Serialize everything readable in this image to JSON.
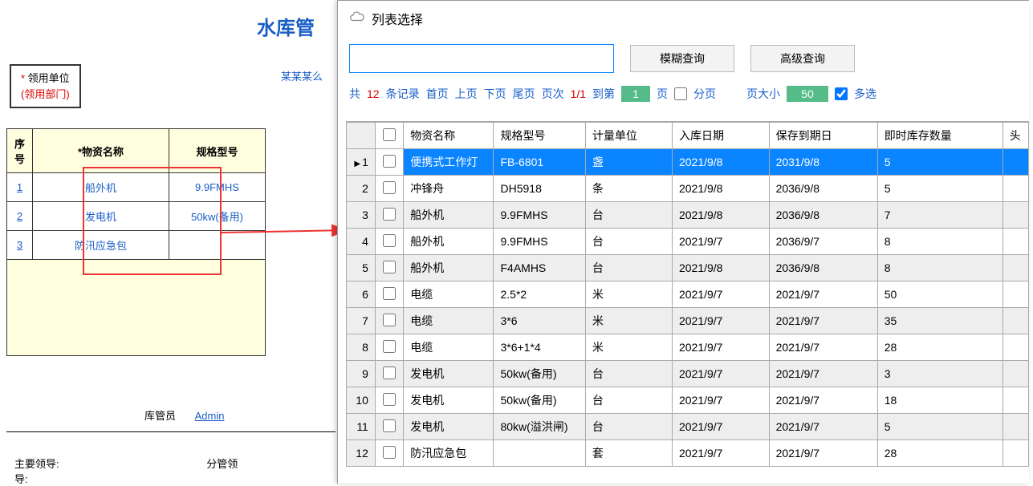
{
  "page_title": "水库管",
  "company_label": "某某某么",
  "receive_box": {
    "line1_star": "*",
    "line1_text": " 领用单位",
    "line2": "(领用部门)"
  },
  "left_table": {
    "headers": {
      "seq": "序号",
      "name": "*物资名称",
      "spec": "规格型号"
    },
    "rows": [
      {
        "seq": "1",
        "name": "船外机",
        "spec": "9.9FMHS"
      },
      {
        "seq": "2",
        "name": "发电机",
        "spec": "50kw(备用)"
      },
      {
        "seq": "3",
        "name": "防汛应急包",
        "spec": ""
      }
    ]
  },
  "footer": {
    "keeper_label": "库管员",
    "keeper_value": "Admin",
    "leader1": "主要领导:",
    "leader2": "分管领导:"
  },
  "popup": {
    "title": "列表选择",
    "search_placeholder": "",
    "btn_fuzzy": "模糊查询",
    "btn_advanced": "高级查询",
    "toolbar": {
      "total_lbl": "共",
      "total_count": "12",
      "records_lbl": "条记录",
      "first": "首页",
      "prev": "上页",
      "next": "下页",
      "last": "尾页",
      "page_lbl": "页次",
      "page_cur": "1/1",
      "goto_lbl": "到第",
      "page_num": "1",
      "page_suffix": "页",
      "paging_chk": "分页",
      "size_lbl": "页大小",
      "size_val": "50",
      "multi_chk": "多选"
    },
    "grid": {
      "headers": {
        "name": "物资名称",
        "spec": "规格型号",
        "unit": "计量单位",
        "in_date": "入库日期",
        "exp_date": "保存到期日",
        "qty": "即时库存数量",
        "extra": "头"
      },
      "rows": [
        {
          "idx": "1",
          "name": "便携式工作灯",
          "spec": "FB-6801",
          "unit": "盏",
          "in_date": "2021/9/8",
          "exp_date": "2031/9/8",
          "qty": "5",
          "selected": true
        },
        {
          "idx": "2",
          "name": "冲锋舟",
          "spec": "DH5918",
          "unit": "条",
          "in_date": "2021/9/8",
          "exp_date": "2036/9/8",
          "qty": "5"
        },
        {
          "idx": "3",
          "name": "船外机",
          "spec": "9.9FMHS",
          "unit": "台",
          "in_date": "2021/9/8",
          "exp_date": "2036/9/8",
          "qty": "7"
        },
        {
          "idx": "4",
          "name": "船外机",
          "spec": "9.9FMHS",
          "unit": "台",
          "in_date": "2021/9/7",
          "exp_date": "2036/9/7",
          "qty": "8"
        },
        {
          "idx": "5",
          "name": "船外机",
          "spec": "F4AMHS",
          "unit": "台",
          "in_date": "2021/9/8",
          "exp_date": "2036/9/8",
          "qty": "8"
        },
        {
          "idx": "6",
          "name": "电缆",
          "spec": "2.5*2",
          "unit": "米",
          "in_date": "2021/9/7",
          "exp_date": "2021/9/7",
          "qty": "50"
        },
        {
          "idx": "7",
          "name": "电缆",
          "spec": "3*6",
          "unit": "米",
          "in_date": "2021/9/7",
          "exp_date": "2021/9/7",
          "qty": "35"
        },
        {
          "idx": "8",
          "name": "电缆",
          "spec": "3*6+1*4",
          "unit": "米",
          "in_date": "2021/9/7",
          "exp_date": "2021/9/7",
          "qty": "28"
        },
        {
          "idx": "9",
          "name": "发电机",
          "spec": "50kw(备用)",
          "unit": "台",
          "in_date": "2021/9/7",
          "exp_date": "2021/9/7",
          "qty": "3"
        },
        {
          "idx": "10",
          "name": "发电机",
          "spec": "50kw(备用)",
          "unit": "台",
          "in_date": "2021/9/7",
          "exp_date": "2021/9/7",
          "qty": "18"
        },
        {
          "idx": "11",
          "name": "发电机",
          "spec": "80kw(溢洪闸)",
          "unit": "台",
          "in_date": "2021/9/7",
          "exp_date": "2021/9/7",
          "qty": "5"
        },
        {
          "idx": "12",
          "name": "防汛应急包",
          "spec": "",
          "unit": "套",
          "in_date": "2021/9/7",
          "exp_date": "2021/9/7",
          "qty": "28"
        }
      ]
    }
  },
  "colors": {
    "link_blue": "#1a5ec8",
    "red": "#d00",
    "select_bg": "#0a84ff",
    "green_box": "#5b8",
    "alt_row": "#eee",
    "fill_yellow": "#ffffe0"
  }
}
